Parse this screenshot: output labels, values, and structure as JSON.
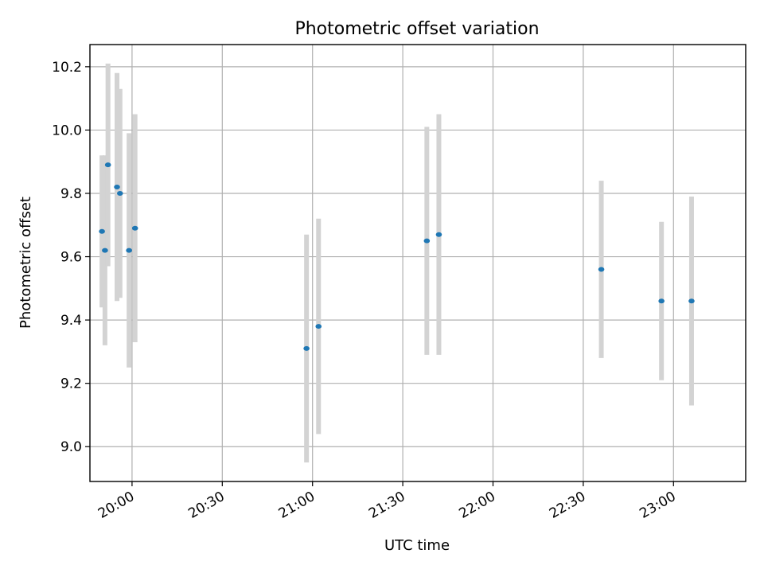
{
  "chart_data": {
    "type": "scatter",
    "title": "Photometric offset variation",
    "xlabel": "UTC time",
    "ylabel": "Photometric offset",
    "x_is_time": true,
    "xlim": [
      "19:46",
      "23:24"
    ],
    "ylim": [
      8.89,
      10.27
    ],
    "x_ticks": [
      "20:00",
      "20:30",
      "21:00",
      "21:30",
      "22:00",
      "22:30",
      "23:00"
    ],
    "y_ticks": [
      9.0,
      9.2,
      9.4,
      9.6,
      9.8,
      10.0,
      10.2
    ],
    "grid": true,
    "legend": "none",
    "point_color": "#1f77b4",
    "errorbar_color": "#d3d3d3",
    "points": [
      {
        "x": "19:50",
        "y": 9.68,
        "yerr": 0.24
      },
      {
        "x": "19:51",
        "y": 9.62,
        "yerr": 0.3
      },
      {
        "x": "19:52",
        "y": 9.89,
        "yerr": 0.32
      },
      {
        "x": "19:55",
        "y": 9.82,
        "yerr": 0.36
      },
      {
        "x": "19:56",
        "y": 9.8,
        "yerr": 0.33
      },
      {
        "x": "19:59",
        "y": 9.62,
        "yerr": 0.37
      },
      {
        "x": "20:01",
        "y": 9.69,
        "yerr": 0.36
      },
      {
        "x": "20:58",
        "y": 9.31,
        "yerr": 0.36
      },
      {
        "x": "21:02",
        "y": 9.38,
        "yerr": 0.34
      },
      {
        "x": "21:38",
        "y": 9.65,
        "yerr": 0.36
      },
      {
        "x": "21:42",
        "y": 9.67,
        "yerr": 0.38
      },
      {
        "x": "22:36",
        "y": 9.56,
        "yerr": 0.28
      },
      {
        "x": "22:56",
        "y": 9.46,
        "yerr": 0.25
      },
      {
        "x": "23:06",
        "y": 9.46,
        "yerr": 0.33
      }
    ]
  }
}
